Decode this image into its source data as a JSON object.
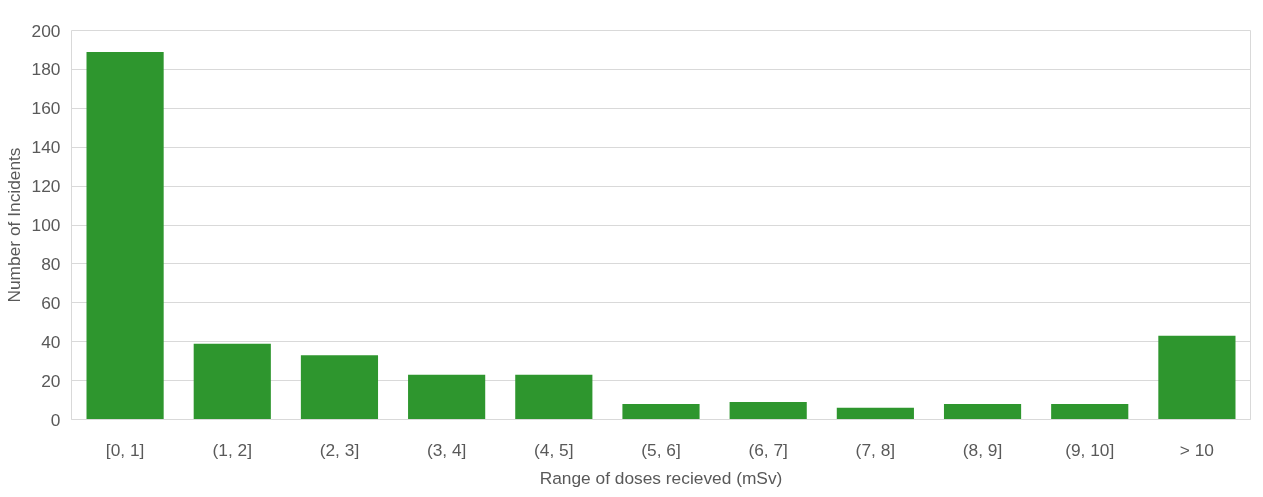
{
  "chart_data": {
    "type": "bar",
    "xlabel": "Range of doses recieved (mSv)",
    "ylabel": "Number of Incidents",
    "categories": [
      "[0, 1]",
      "(1, 2]",
      "(2, 3]",
      "(3, 4]",
      "(4, 5]",
      "(5, 6]",
      "(6, 7]",
      "(7, 8]",
      "(8, 9]",
      "(9, 10]",
      "> 10"
    ],
    "values": [
      189,
      39,
      33,
      23,
      23,
      8,
      9,
      6,
      8,
      8,
      43
    ],
    "color": "#2e962e",
    "ylim": [
      0,
      200
    ],
    "yticks": [
      0,
      20,
      40,
      60,
      80,
      100,
      120,
      140,
      160,
      180,
      200
    ],
    "grid": "y"
  }
}
